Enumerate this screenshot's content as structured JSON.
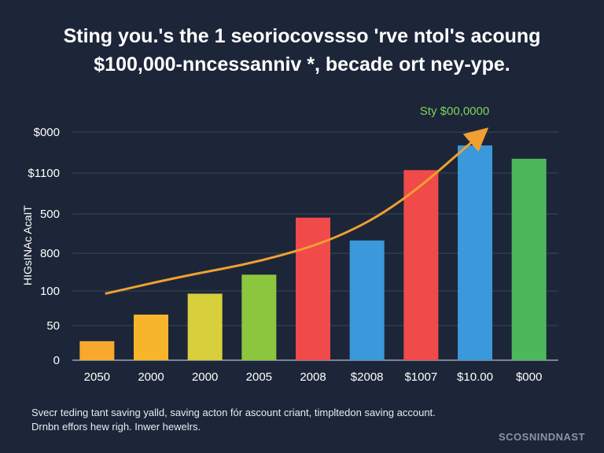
{
  "title_lines": [
    "Sting you.'s the 1 seoriocovssso 'rve ntol's acoung",
    "$100,000-nncessanniv *, becade ort ney-ype."
  ],
  "footnote_lines": [
    "Svecr teding tant saving yalld, saving acton fór ascount criant, timpltedon saving account.",
    "Drnbn effors hew righ. Inwer hewelrs."
  ],
  "watermark": "SCOSNINDNAST",
  "chart_data": {
    "type": "bar",
    "title": "Sting you.'s the 1 seoriocovssso 'rve ntol's acoung $100,000-nncessanniv *, becade ort ney-ype.",
    "ylabel": "HIGsINAc AcaIT",
    "xlabel": "",
    "categories": [
      "2050",
      "2000",
      "2000",
      "2005",
      "2008",
      "$2008",
      "$1007",
      "$10.00",
      "$000"
    ],
    "tick_labels": [
      "$000",
      "$1100",
      "500",
      "800",
      "100",
      "50",
      "0"
    ],
    "values": [
      0.5,
      1.2,
      1.75,
      2.25,
      3.75,
      3.15,
      5.0,
      5.65,
      5.3
    ],
    "bar_colors": [
      "#f7a92e",
      "#f7b52c",
      "#d7cf3c",
      "#8cc63f",
      "#f04a4b",
      "#3a98db",
      "#f04a4b",
      "#3a98db",
      "#4cb85c"
    ],
    "ylim": [
      0,
      6
    ],
    "trend": {
      "label": "Sty $00,0000",
      "points": [
        0.9,
        2.0,
        3.25
      ],
      "points_x": [
        -0.3,
        1.1,
        2.6,
        4.0,
        5.2,
        6.7
      ],
      "points_y": [
        1.75,
        2.2,
        2.6,
        3.2,
        4.15,
        6.0
      ],
      "color": "#f0a030",
      "label_color": "#7fd35a"
    },
    "grid": true
  }
}
